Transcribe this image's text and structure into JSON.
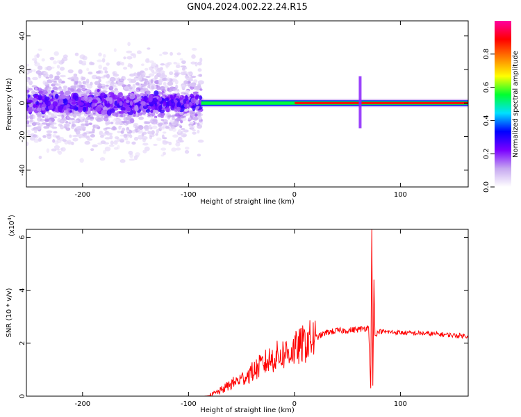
{
  "title": "GN04.2024.002.22.24.R15",
  "chart_data": [
    {
      "type": "heatmap",
      "xlabel": "Height of straight line (km)",
      "ylabel": "Frequency (Hz)",
      "xlim": [
        -253,
        164
      ],
      "ylim": [
        -50,
        49
      ],
      "xticks": [
        -200,
        -100,
        0,
        100
      ],
      "yticks": [
        -40,
        -20,
        0,
        20,
        40
      ],
      "colorbar": {
        "label": "Normalized spectral amplitude",
        "range": [
          0,
          1
        ],
        "ticks": [
          "0.0",
          "0.2",
          "0.4",
          "0.6",
          "0.8"
        ],
        "colors": [
          "#ffffff",
          "#c6a8f0",
          "#7a00ff",
          "#0000ff",
          "#00e0ff",
          "#00ff30",
          "#ffff00",
          "#ff8000",
          "#ff0000",
          "#ff00a0"
        ]
      },
      "features": [
        {
          "name": "broadband_noise",
          "x_range": [
            -253,
            -88
          ],
          "y_range": [
            -50,
            49
          ],
          "amplitude": 0.1
        },
        {
          "name": "carrier_line",
          "x_range": [
            -88,
            164
          ],
          "y": 0,
          "amplitude": 0.95
        },
        {
          "name": "spike",
          "x": 62,
          "y_range": [
            -15,
            16
          ],
          "amplitude": 0.2
        }
      ]
    },
    {
      "type": "line",
      "xlabel": "Height of straight line (km)",
      "ylabel": "SNR (10 * v/v)",
      "multiplier": "(x10^4)",
      "xlim": [
        -253,
        164
      ],
      "ylim": [
        0,
        6.3
      ],
      "xticks": [
        -200,
        -100,
        0,
        100
      ],
      "yticks": [
        0,
        2,
        4,
        6
      ],
      "color": "#ff0000",
      "series": [
        {
          "x": [
            -253,
            -100,
            -85,
            -80,
            -70,
            -60,
            -50,
            -40,
            -30,
            -20,
            -10,
            0,
            10,
            20,
            30,
            40,
            50,
            60,
            65,
            70,
            72,
            73,
            74,
            75,
            76,
            80,
            90,
            100,
            110,
            120,
            130,
            140,
            150,
            164
          ],
          "values": [
            0,
            0,
            0,
            0.02,
            0.2,
            0.45,
            0.65,
            0.9,
            1.2,
            1.45,
            1.6,
            1.75,
            2.0,
            2.2,
            2.4,
            2.47,
            2.48,
            2.52,
            2.55,
            2.6,
            0.3,
            6.3,
            0.4,
            4.4,
            2.3,
            2.45,
            2.42,
            2.4,
            2.38,
            2.37,
            2.35,
            2.33,
            2.3,
            2.27
          ]
        }
      ]
    }
  ]
}
